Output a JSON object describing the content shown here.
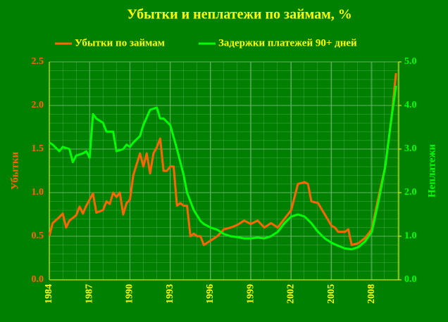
{
  "chart_data": {
    "type": "line",
    "title": "Убытки и неплатежи по займам, %",
    "y_label": "Убытки",
    "y2_label": "Неплатежи",
    "xlim": [
      1984,
      2010
    ],
    "xticks": [
      1984,
      1987,
      1990,
      1993,
      1996,
      1999,
      2002,
      2005,
      2008
    ],
    "ylim": [
      0,
      2.5
    ],
    "yticks": [
      {
        "value": 0,
        "label": "0.0"
      },
      {
        "value": 0.5,
        "label": "0.5"
      },
      {
        "value": 1,
        "label": "1.0"
      },
      {
        "value": 1.5,
        "label": "1.5"
      },
      {
        "value": 2,
        "label": "2.0"
      },
      {
        "value": 2.5,
        "label": "2.5"
      }
    ],
    "y2lim": [
      0,
      5
    ],
    "y2ticks": [
      {
        "value": 0,
        "label": "0.0"
      },
      {
        "value": 1,
        "label": "1.0"
      },
      {
        "value": 2,
        "label": "2.0"
      },
      {
        "value": 3,
        "label": "3.0"
      },
      {
        "value": 4,
        "label": "4.0"
      },
      {
        "value": 5,
        "label": "5.0"
      }
    ],
    "grid": true,
    "series": [
      {
        "name": "Убытки по займам",
        "color": "#ff6600",
        "x": [
          1984.0,
          1984.25,
          1984.75,
          1985.0,
          1985.25,
          1985.5,
          1986.0,
          1986.25,
          1986.5,
          1986.75,
          1987.0,
          1987.25,
          1987.5,
          1988.0,
          1988.25,
          1988.5,
          1988.75,
          1989.0,
          1989.25,
          1989.5,
          1989.75,
          1990.0,
          1990.25,
          1990.75,
          1991.0,
          1991.25,
          1991.5,
          1991.75,
          1992.0,
          1992.25,
          1992.5,
          1992.75,
          1993.0,
          1993.25,
          1993.5,
          1993.75,
          1994.0,
          1994.25,
          1994.5,
          1994.75,
          1995.0,
          1995.25,
          1995.5,
          1996.0,
          1996.5,
          1997.0,
          1997.5,
          1998.0,
          1998.5,
          1999.0,
          1999.5,
          2000.0,
          2000.5,
          2001.0,
          2001.5,
          2002.0,
          2002.5,
          2003.0,
          2003.25,
          2003.5,
          2004.0,
          2004.5,
          2005.0,
          2005.25,
          2005.5,
          2006.0,
          2006.25,
          2006.5,
          2007.0,
          2007.5,
          2008.0,
          2008.5,
          2009.0,
          2009.5,
          2009.8
        ],
        "values": [
          0.5,
          0.65,
          0.72,
          0.76,
          0.6,
          0.68,
          0.74,
          0.84,
          0.76,
          0.85,
          0.92,
          0.99,
          0.77,
          0.8,
          0.9,
          0.87,
          1.0,
          0.95,
          1.0,
          0.75,
          0.88,
          0.92,
          1.2,
          1.45,
          1.3,
          1.45,
          1.22,
          1.45,
          1.52,
          1.62,
          1.25,
          1.25,
          1.3,
          1.3,
          0.85,
          0.88,
          0.85,
          0.85,
          0.5,
          0.53,
          0.5,
          0.5,
          0.4,
          0.45,
          0.5,
          0.58,
          0.6,
          0.63,
          0.68,
          0.64,
          0.68,
          0.6,
          0.65,
          0.6,
          0.7,
          0.8,
          1.1,
          1.12,
          1.1,
          0.9,
          0.88,
          0.75,
          0.62,
          0.6,
          0.55,
          0.55,
          0.58,
          0.4,
          0.42,
          0.48,
          0.58,
          0.95,
          1.3,
          1.9,
          2.37
        ]
      },
      {
        "name": "Задержки платежей 90+ дней",
        "color": "#00ff00",
        "axis": "y2",
        "x": [
          1984.0,
          1984.25,
          1984.75,
          1985.0,
          1985.5,
          1985.75,
          1986.0,
          1986.5,
          1986.75,
          1987.0,
          1987.25,
          1987.5,
          1988.0,
          1988.25,
          1988.75,
          1989.0,
          1989.5,
          1989.75,
          1990.0,
          1990.25,
          1990.75,
          1991.0,
          1991.5,
          1992.0,
          1992.25,
          1992.5,
          1993.0,
          1993.5,
          1994.0,
          1994.25,
          1994.75,
          1995.25,
          1995.5,
          1996.0,
          1996.5,
          1997.0,
          1997.5,
          1998.0,
          1998.5,
          1999.0,
          1999.5,
          2000.0,
          2000.5,
          2001.0,
          2001.5,
          2002.0,
          2002.5,
          2003.0,
          2003.5,
          2004.0,
          2004.5,
          2005.0,
          2005.5,
          2006.0,
          2006.5,
          2007.0,
          2007.5,
          2008.0,
          2008.5,
          2009.0,
          2009.5,
          2009.8
        ],
        "values": [
          3.15,
          3.1,
          2.95,
          3.05,
          3.0,
          2.7,
          2.85,
          2.9,
          2.95,
          2.8,
          3.8,
          3.7,
          3.6,
          3.4,
          3.4,
          2.95,
          3.0,
          3.1,
          3.05,
          3.15,
          3.3,
          3.55,
          3.9,
          3.95,
          3.7,
          3.7,
          3.55,
          3.0,
          2.4,
          2.0,
          1.6,
          1.35,
          1.28,
          1.2,
          1.15,
          1.05,
          1.0,
          0.98,
          0.95,
          0.95,
          0.97,
          0.95,
          1.0,
          1.1,
          1.3,
          1.45,
          1.5,
          1.45,
          1.3,
          1.1,
          0.95,
          0.85,
          0.78,
          0.72,
          0.7,
          0.75,
          0.88,
          1.1,
          1.8,
          2.6,
          3.8,
          4.45
        ]
      }
    ]
  }
}
